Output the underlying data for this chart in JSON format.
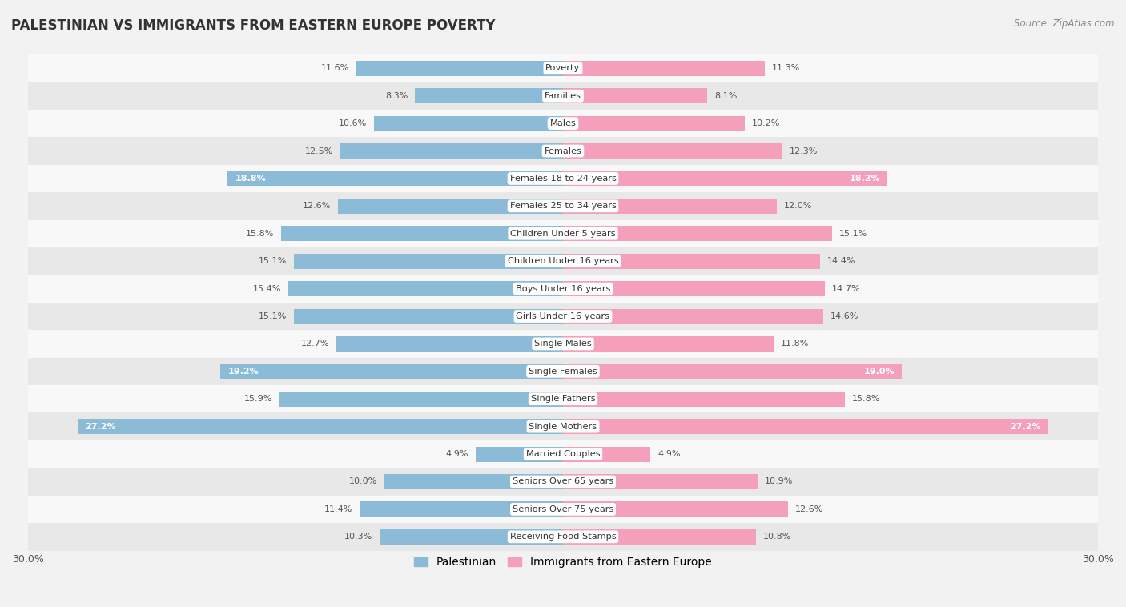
{
  "title": "PALESTINIAN VS IMMIGRANTS FROM EASTERN EUROPE POVERTY",
  "source": "Source: ZipAtlas.com",
  "categories": [
    "Poverty",
    "Families",
    "Males",
    "Females",
    "Females 18 to 24 years",
    "Females 25 to 34 years",
    "Children Under 5 years",
    "Children Under 16 years",
    "Boys Under 16 years",
    "Girls Under 16 years",
    "Single Males",
    "Single Females",
    "Single Fathers",
    "Single Mothers",
    "Married Couples",
    "Seniors Over 65 years",
    "Seniors Over 75 years",
    "Receiving Food Stamps"
  ],
  "palestinian": [
    11.6,
    8.3,
    10.6,
    12.5,
    18.8,
    12.6,
    15.8,
    15.1,
    15.4,
    15.1,
    12.7,
    19.2,
    15.9,
    27.2,
    4.9,
    10.0,
    11.4,
    10.3
  ],
  "eastern_europe": [
    11.3,
    8.1,
    10.2,
    12.3,
    18.2,
    12.0,
    15.1,
    14.4,
    14.7,
    14.6,
    11.8,
    19.0,
    15.8,
    27.2,
    4.9,
    10.9,
    12.6,
    10.8
  ],
  "highlight_threshold": 18.0,
  "palestinian_color": "#8bbbd6",
  "eastern_europe_color": "#f5a0bb",
  "background_color": "#f2f2f2",
  "row_bg_even": "#f8f8f8",
  "row_bg_odd": "#e8e8e8",
  "xlim": 30.0,
  "bar_height": 0.55,
  "legend_labels": [
    "Palestinian",
    "Immigrants from Eastern Europe"
  ]
}
